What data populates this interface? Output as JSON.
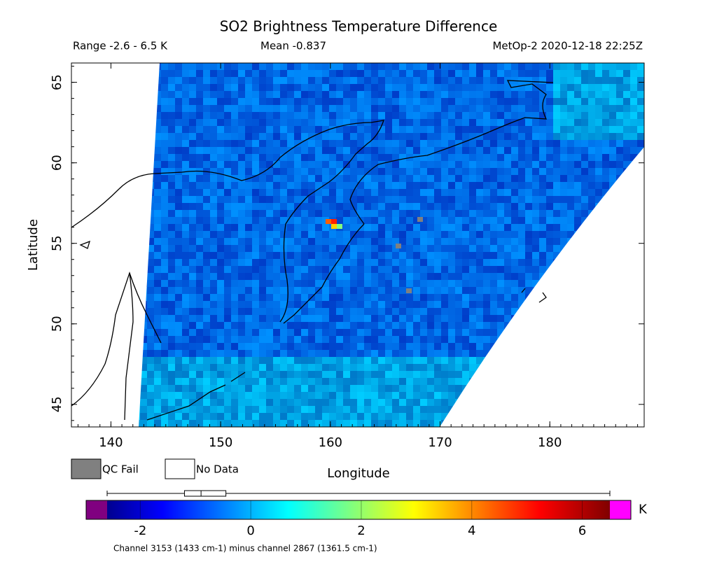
{
  "chart_data": {
    "type": "map",
    "title": "SO2 Brightness Temperature Difference",
    "range_text": "Range -2.6 - 6.5 K",
    "mean_text": "Mean -0.837",
    "source_text": "MetOp-2 2020-12-18 22:25Z",
    "x_label": "Longitude",
    "y_label": "Latitude",
    "xlim": [
      136.4,
      188.6
    ],
    "xticks": [
      140,
      150,
      160,
      170,
      180
    ],
    "ylim": [
      43.6,
      66.2
    ],
    "yticks": [
      45,
      50,
      55,
      60,
      65
    ],
    "legend": [
      {
        "name": "QC Fail",
        "color": "#808080"
      },
      {
        "name": "No Data",
        "color": "#ffffff"
      }
    ],
    "colorbar": {
      "label": "K",
      "lim": [
        -2.6,
        6.5
      ],
      "ticks": [
        -2,
        0,
        2,
        4,
        6
      ],
      "under_color": "#800080",
      "over_color": "#ff00ff"
    },
    "boxplot": {
      "min": -2.6,
      "q1": -1.2,
      "median": -0.9,
      "q3": -0.45,
      "max": 6.5
    },
    "footnote": "Channel 3153 (1433 cm-1) minus channel 2867 (1361.5 cm-1)"
  }
}
